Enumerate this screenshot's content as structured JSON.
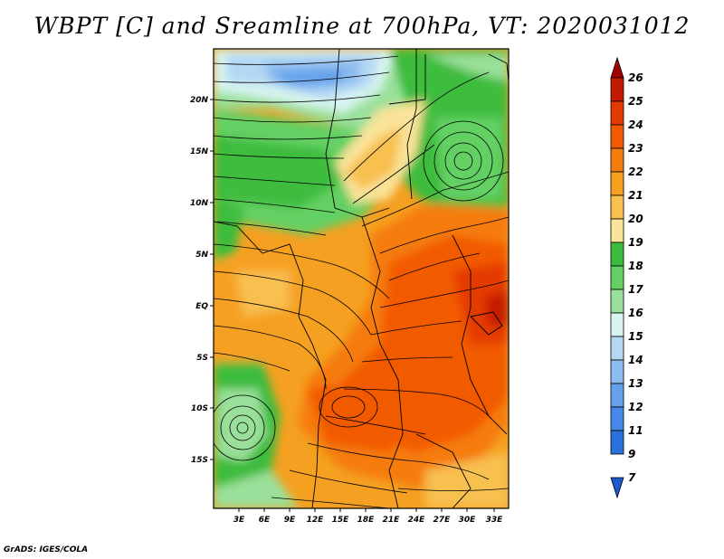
{
  "title": "WBPT [C] and Sreamline at 700hPa, VT: 2020031012",
  "credit": "GrADS: IGES/COLA",
  "lat_labels": [
    "20N",
    "15N",
    "10N",
    "5N",
    "EQ",
    "5S",
    "10S",
    "15S"
  ],
  "lon_labels": [
    "3E",
    "6E",
    "9E",
    "12E",
    "15E",
    "18E",
    "21E",
    "24E",
    "27E",
    "30E",
    "33E"
  ],
  "colorbar": {
    "levels": [
      "26",
      "25",
      "24",
      "23",
      "22",
      "21",
      "20",
      "19",
      "18",
      "17",
      "16",
      "15",
      "14",
      "13",
      "12",
      "11",
      "9",
      "7"
    ],
    "colors": [
      "#a00000",
      "#c41a00",
      "#e43a00",
      "#f25a00",
      "#f57c0e",
      "#f5a020",
      "#f8c050",
      "#fae39a",
      "#3cbc3c",
      "#64d064",
      "#9ae09a",
      "#d8f4f0",
      "#b4d8f4",
      "#8cbcf0",
      "#64a0ec",
      "#4688e8",
      "#2c70dc",
      "#1a5ad0"
    ]
  },
  "colors": {
    "frame": "#000000",
    "background": "#ffffff"
  }
}
